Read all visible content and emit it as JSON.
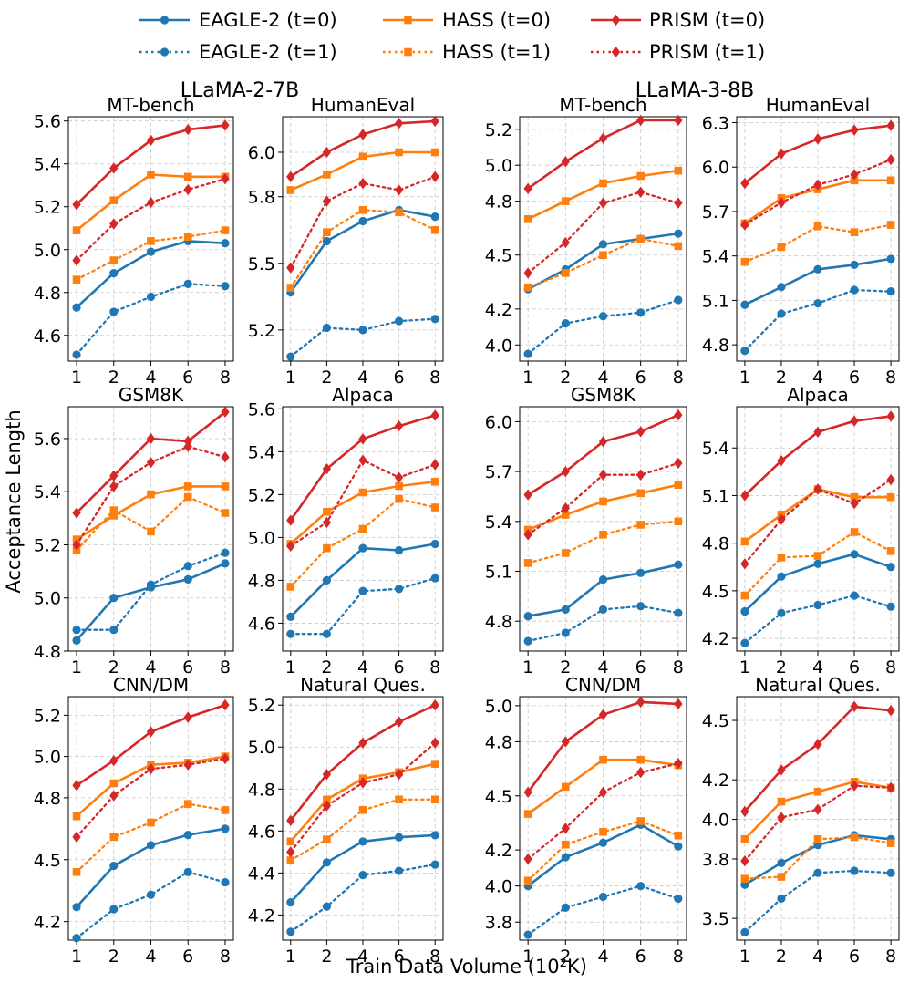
{
  "x_label": "Train Data Volume (10²K)",
  "y_label": "Acceptance Length",
  "groups": [
    "LLaMA-2-7B",
    "LLaMA-3-8B"
  ],
  "legend": [
    {
      "key": "eagle_t0",
      "label": "EAGLE-2 (t=0)",
      "color": "#1f77b4",
      "marker": "circle",
      "dashed": false
    },
    {
      "key": "eagle_t1",
      "label": "EAGLE-2 (t=1)",
      "color": "#1f77b4",
      "marker": "circle",
      "dashed": true
    },
    {
      "key": "hass_t0",
      "label": "HASS (t=0)",
      "color": "#ff7f0e",
      "marker": "square",
      "dashed": false
    },
    {
      "key": "hass_t1",
      "label": "HASS (t=1)",
      "color": "#ff7f0e",
      "marker": "square",
      "dashed": true
    },
    {
      "key": "prism_t0",
      "label": "PRISM (t=0)",
      "color": "#d62728",
      "marker": "diamond",
      "dashed": false
    },
    {
      "key": "prism_t1",
      "label": "PRISM (t=1)",
      "color": "#d62728",
      "marker": "diamond",
      "dashed": true
    }
  ],
  "chart_data": [
    {
      "type": "line",
      "group": "LLaMA-2-7B",
      "title": "MT-bench",
      "x": [
        1,
        2,
        4,
        6,
        8
      ],
      "ylim": [
        4.48,
        5.62
      ],
      "yticks": [
        4.6,
        4.8,
        5.0,
        5.2,
        5.4,
        5.6
      ],
      "ytick_labels": [
        "4.6",
        "4.8",
        "5.0",
        "5.2",
        "5.4",
        "5.6"
      ],
      "series": [
        {
          "name": "EAGLE-2 (t=0)",
          "values": [
            4.73,
            4.89,
            4.99,
            5.04,
            5.03
          ]
        },
        {
          "name": "EAGLE-2 (t=1)",
          "values": [
            4.51,
            4.71,
            4.78,
            4.84,
            4.83
          ]
        },
        {
          "name": "HASS (t=0)",
          "values": [
            5.09,
            5.23,
            5.35,
            5.34,
            5.34
          ]
        },
        {
          "name": "HASS (t=1)",
          "values": [
            4.86,
            4.95,
            5.04,
            5.06,
            5.09
          ]
        },
        {
          "name": "PRISM (t=0)",
          "values": [
            5.21,
            5.38,
            5.51,
            5.56,
            5.58
          ]
        },
        {
          "name": "PRISM (t=1)",
          "values": [
            4.95,
            5.12,
            5.22,
            5.28,
            5.33
          ]
        }
      ]
    },
    {
      "type": "line",
      "group": "LLaMA-2-7B",
      "title": "HumanEval",
      "x": [
        1,
        2,
        4,
        6,
        8
      ],
      "ylim": [
        5.06,
        6.16
      ],
      "yticks": [
        5.2,
        5.5,
        5.8,
        6.0
      ],
      "ytick_labels": [
        "5.2",
        "5.5",
        "5.8",
        "6.0"
      ],
      "series": [
        {
          "name": "EAGLE-2 (t=0)",
          "values": [
            5.37,
            5.6,
            5.69,
            5.74,
            5.71
          ]
        },
        {
          "name": "EAGLE-2 (t=1)",
          "values": [
            5.08,
            5.21,
            5.2,
            5.24,
            5.25
          ]
        },
        {
          "name": "HASS (t=0)",
          "values": [
            5.83,
            5.9,
            5.98,
            6.0,
            6.0
          ]
        },
        {
          "name": "HASS (t=1)",
          "values": [
            5.39,
            5.64,
            5.74,
            5.73,
            5.65
          ]
        },
        {
          "name": "PRISM (t=0)",
          "values": [
            5.89,
            6.0,
            6.08,
            6.13,
            6.14
          ]
        },
        {
          "name": "PRISM (t=1)",
          "values": [
            5.48,
            5.78,
            5.86,
            5.83,
            5.89
          ]
        }
      ]
    },
    {
      "type": "line",
      "group": "LLaMA-3-8B",
      "title": "MT-bench",
      "x": [
        1,
        2,
        4,
        6,
        8
      ],
      "ylim": [
        3.91,
        5.27
      ],
      "yticks": [
        4.0,
        4.2,
        4.5,
        4.8,
        5.0,
        5.2
      ],
      "ytick_labels": [
        "4.0",
        "4.2",
        "4.5",
        "4.8",
        "5.0",
        "5.2"
      ],
      "series": [
        {
          "name": "EAGLE-2 (t=0)",
          "values": [
            4.31,
            4.42,
            4.56,
            4.59,
            4.62
          ]
        },
        {
          "name": "EAGLE-2 (t=1)",
          "values": [
            3.95,
            4.12,
            4.16,
            4.18,
            4.25
          ]
        },
        {
          "name": "HASS (t=0)",
          "values": [
            4.7,
            4.8,
            4.9,
            4.94,
            4.97
          ]
        },
        {
          "name": "HASS (t=1)",
          "values": [
            4.32,
            4.4,
            4.5,
            4.59,
            4.55
          ]
        },
        {
          "name": "PRISM (t=0)",
          "values": [
            4.87,
            5.02,
            5.15,
            5.25,
            5.25
          ]
        },
        {
          "name": "PRISM (t=1)",
          "values": [
            4.4,
            4.57,
            4.79,
            4.85,
            4.79
          ]
        }
      ]
    },
    {
      "type": "line",
      "group": "LLaMA-3-8B",
      "title": "HumanEval",
      "x": [
        1,
        2,
        4,
        6,
        8
      ],
      "ylim": [
        4.69,
        6.34
      ],
      "yticks": [
        4.8,
        5.1,
        5.4,
        5.7,
        6.0,
        6.3
      ],
      "ytick_labels": [
        "4.8",
        "5.1",
        "5.4",
        "5.7",
        "6.0",
        "6.3"
      ],
      "series": [
        {
          "name": "EAGLE-2 (t=0)",
          "values": [
            5.07,
            5.19,
            5.31,
            5.34,
            5.38
          ]
        },
        {
          "name": "EAGLE-2 (t=1)",
          "values": [
            4.76,
            5.01,
            5.08,
            5.17,
            5.16
          ]
        },
        {
          "name": "HASS (t=0)",
          "values": [
            5.62,
            5.79,
            5.85,
            5.91,
            5.91
          ]
        },
        {
          "name": "HASS (t=1)",
          "values": [
            5.36,
            5.46,
            5.6,
            5.56,
            5.61
          ]
        },
        {
          "name": "PRISM (t=0)",
          "values": [
            5.89,
            6.09,
            6.19,
            6.25,
            6.28
          ]
        },
        {
          "name": "PRISM (t=1)",
          "values": [
            5.61,
            5.76,
            5.88,
            5.95,
            6.05
          ]
        }
      ]
    },
    {
      "type": "line",
      "group": "LLaMA-2-7B",
      "title": "GSM8K",
      "x": [
        1,
        2,
        4,
        6,
        8
      ],
      "ylim": [
        4.8,
        5.72
      ],
      "yticks": [
        4.8,
        5.0,
        5.2,
        5.4,
        5.6
      ],
      "ytick_labels": [
        "4.8",
        "5.0",
        "5.2",
        "5.4",
        "5.6"
      ],
      "series": [
        {
          "name": "EAGLE-2 (t=0)",
          "values": [
            4.84,
            5.0,
            5.04,
            5.07,
            5.13
          ]
        },
        {
          "name": "EAGLE-2 (t=1)",
          "values": [
            4.88,
            4.88,
            5.05,
            5.12,
            5.17
          ]
        },
        {
          "name": "HASS (t=0)",
          "values": [
            5.22,
            5.31,
            5.39,
            5.42,
            5.42
          ]
        },
        {
          "name": "HASS (t=1)",
          "values": [
            5.18,
            5.33,
            5.25,
            5.38,
            5.32
          ]
        },
        {
          "name": "PRISM (t=0)",
          "values": [
            5.32,
            5.46,
            5.6,
            5.59,
            5.7
          ]
        },
        {
          "name": "PRISM (t=1)",
          "values": [
            5.2,
            5.42,
            5.51,
            5.57,
            5.53
          ]
        }
      ]
    },
    {
      "type": "line",
      "group": "LLaMA-2-7B",
      "title": "Alpaca",
      "x": [
        1,
        2,
        4,
        6,
        8
      ],
      "ylim": [
        4.47,
        5.61
      ],
      "yticks": [
        4.6,
        4.8,
        5.0,
        5.2,
        5.4,
        5.6
      ],
      "ytick_labels": [
        "4.6",
        "4.8",
        "5.0",
        "5.2",
        "5.4",
        "5.6"
      ],
      "series": [
        {
          "name": "EAGLE-2 (t=0)",
          "values": [
            4.63,
            4.8,
            4.95,
            4.94,
            4.97
          ]
        },
        {
          "name": "EAGLE-2 (t=1)",
          "values": [
            4.55,
            4.55,
            4.75,
            4.76,
            4.81
          ]
        },
        {
          "name": "HASS (t=0)",
          "values": [
            4.97,
            5.12,
            5.21,
            5.24,
            5.26
          ]
        },
        {
          "name": "HASS (t=1)",
          "values": [
            4.77,
            4.95,
            5.04,
            5.18,
            5.14
          ]
        },
        {
          "name": "PRISM (t=0)",
          "values": [
            5.08,
            5.32,
            5.46,
            5.52,
            5.57
          ]
        },
        {
          "name": "PRISM (t=1)",
          "values": [
            4.96,
            5.07,
            5.36,
            5.28,
            5.34
          ]
        }
      ]
    },
    {
      "type": "line",
      "group": "LLaMA-3-8B",
      "title": "GSM8K",
      "x": [
        1,
        2,
        4,
        6,
        8
      ],
      "ylim": [
        4.62,
        6.09
      ],
      "yticks": [
        4.8,
        5.1,
        5.4,
        5.7,
        6.0
      ],
      "ytick_labels": [
        "4.8",
        "5.1",
        "5.4",
        "5.7",
        "6.0"
      ],
      "series": [
        {
          "name": "EAGLE-2 (t=0)",
          "values": [
            4.83,
            4.87,
            5.05,
            5.09,
            5.14
          ]
        },
        {
          "name": "EAGLE-2 (t=1)",
          "values": [
            4.68,
            4.73,
            4.87,
            4.89,
            4.85
          ]
        },
        {
          "name": "HASS (t=0)",
          "values": [
            5.35,
            5.44,
            5.52,
            5.57,
            5.62
          ]
        },
        {
          "name": "HASS (t=1)",
          "values": [
            5.15,
            5.21,
            5.32,
            5.38,
            5.4
          ]
        },
        {
          "name": "PRISM (t=0)",
          "values": [
            5.56,
            5.7,
            5.88,
            5.94,
            6.04
          ]
        },
        {
          "name": "PRISM (t=1)",
          "values": [
            5.32,
            5.48,
            5.68,
            5.68,
            5.75
          ]
        }
      ]
    },
    {
      "type": "line",
      "group": "LLaMA-3-8B",
      "title": "Alpaca",
      "x": [
        1,
        2,
        4,
        6,
        8
      ],
      "ylim": [
        4.12,
        5.66
      ],
      "yticks": [
        4.2,
        4.5,
        4.8,
        5.1,
        5.4
      ],
      "ytick_labels": [
        "4.2",
        "4.5",
        "4.8",
        "5.1",
        "5.4"
      ],
      "series": [
        {
          "name": "EAGLE-2 (t=0)",
          "values": [
            4.37,
            4.59,
            4.67,
            4.73,
            4.65
          ]
        },
        {
          "name": "EAGLE-2 (t=1)",
          "values": [
            4.17,
            4.36,
            4.41,
            4.47,
            4.4
          ]
        },
        {
          "name": "HASS (t=0)",
          "values": [
            4.81,
            4.98,
            5.14,
            5.09,
            5.09
          ]
        },
        {
          "name": "HASS (t=1)",
          "values": [
            4.47,
            4.71,
            4.72,
            4.87,
            4.75
          ]
        },
        {
          "name": "PRISM (t=0)",
          "values": [
            5.1,
            5.32,
            5.5,
            5.57,
            5.6
          ]
        },
        {
          "name": "PRISM (t=1)",
          "values": [
            4.67,
            4.95,
            5.14,
            5.05,
            5.2
          ]
        }
      ]
    },
    {
      "type": "line",
      "group": "LLaMA-2-7B",
      "title": "CNN/DM",
      "x": [
        1,
        2,
        4,
        6,
        8
      ],
      "ylim": [
        4.11,
        5.29
      ],
      "yticks": [
        4.2,
        4.5,
        4.8,
        5.0,
        5.2
      ],
      "ytick_labels": [
        "4.2",
        "4.5",
        "4.8",
        "5.0",
        "5.2"
      ],
      "series": [
        {
          "name": "EAGLE-2 (t=0)",
          "values": [
            4.27,
            4.47,
            4.57,
            4.62,
            4.65
          ]
        },
        {
          "name": "EAGLE-2 (t=1)",
          "values": [
            4.12,
            4.26,
            4.33,
            4.44,
            4.39
          ]
        },
        {
          "name": "HASS (t=0)",
          "values": [
            4.71,
            4.87,
            4.96,
            4.97,
            5.0
          ]
        },
        {
          "name": "HASS (t=1)",
          "values": [
            4.44,
            4.61,
            4.68,
            4.77,
            4.74
          ]
        },
        {
          "name": "PRISM (t=0)",
          "values": [
            4.86,
            4.98,
            5.12,
            5.19,
            5.25
          ]
        },
        {
          "name": "PRISM (t=1)",
          "values": [
            4.61,
            4.81,
            4.94,
            4.96,
            4.99
          ]
        }
      ]
    },
    {
      "type": "line",
      "group": "LLaMA-2-7B",
      "title": "Natural Ques.",
      "x": [
        1,
        2,
        4,
        6,
        8
      ],
      "ylim": [
        4.08,
        5.24
      ],
      "yticks": [
        4.2,
        4.4,
        4.6,
        4.8,
        5.0,
        5.2
      ],
      "ytick_labels": [
        "4.2",
        "4.4",
        "4.6",
        "4.8",
        "5.0",
        "5.2"
      ],
      "series": [
        {
          "name": "EAGLE-2 (t=0)",
          "values": [
            4.26,
            4.45,
            4.55,
            4.57,
            4.58
          ]
        },
        {
          "name": "EAGLE-2 (t=1)",
          "values": [
            4.12,
            4.24,
            4.39,
            4.41,
            4.44
          ]
        },
        {
          "name": "HASS (t=0)",
          "values": [
            4.55,
            4.75,
            4.85,
            4.88,
            4.92
          ]
        },
        {
          "name": "HASS (t=1)",
          "values": [
            4.46,
            4.56,
            4.7,
            4.75,
            4.75
          ]
        },
        {
          "name": "PRISM (t=0)",
          "values": [
            4.65,
            4.87,
            5.02,
            5.12,
            5.2
          ]
        },
        {
          "name": "PRISM (t=1)",
          "values": [
            4.5,
            4.72,
            4.83,
            4.87,
            5.02
          ]
        }
      ]
    },
    {
      "type": "line",
      "group": "LLaMA-3-8B",
      "title": "CNN/DM",
      "x": [
        1,
        2,
        4,
        6,
        8
      ],
      "ylim": [
        3.7,
        5.05
      ],
      "yticks": [
        3.8,
        4.0,
        4.2,
        4.5,
        4.8,
        5.0
      ],
      "ytick_labels": [
        "3.8",
        "4.0",
        "4.2",
        "4.5",
        "4.8",
        "5.0"
      ],
      "series": [
        {
          "name": "EAGLE-2 (t=0)",
          "values": [
            4.0,
            4.16,
            4.24,
            4.34,
            4.22
          ]
        },
        {
          "name": "EAGLE-2 (t=1)",
          "values": [
            3.73,
            3.88,
            3.94,
            4.0,
            3.93
          ]
        },
        {
          "name": "HASS (t=0)",
          "values": [
            4.4,
            4.55,
            4.7,
            4.7,
            4.67
          ]
        },
        {
          "name": "HASS (t=1)",
          "values": [
            4.03,
            4.23,
            4.3,
            4.36,
            4.28
          ]
        },
        {
          "name": "PRISM (t=0)",
          "values": [
            4.52,
            4.8,
            4.95,
            5.02,
            5.01
          ]
        },
        {
          "name": "PRISM (t=1)",
          "values": [
            4.15,
            4.32,
            4.52,
            4.63,
            4.68
          ]
        }
      ]
    },
    {
      "type": "line",
      "group": "LLaMA-3-8B",
      "title": "Natural Ques.",
      "x": [
        1,
        2,
        4,
        6,
        8
      ],
      "ylim": [
        3.39,
        4.62
      ],
      "yticks": [
        3.5,
        3.8,
        4.0,
        4.2,
        4.5
      ],
      "ytick_labels": [
        "3.5",
        "3.8",
        "4.0",
        "4.2",
        "4.5"
      ],
      "series": [
        {
          "name": "EAGLE-2 (t=0)",
          "values": [
            3.67,
            3.78,
            3.87,
            3.92,
            3.9
          ]
        },
        {
          "name": "EAGLE-2 (t=1)",
          "values": [
            3.43,
            3.6,
            3.73,
            3.74,
            3.73
          ]
        },
        {
          "name": "HASS (t=0)",
          "values": [
            3.9,
            4.09,
            4.14,
            4.19,
            4.16
          ]
        },
        {
          "name": "HASS (t=1)",
          "values": [
            3.7,
            3.71,
            3.9,
            3.91,
            3.88
          ]
        },
        {
          "name": "PRISM (t=0)",
          "values": [
            4.04,
            4.25,
            4.38,
            4.57,
            4.55
          ]
        },
        {
          "name": "PRISM (t=1)",
          "values": [
            3.79,
            4.01,
            4.05,
            4.17,
            4.16
          ]
        }
      ]
    }
  ]
}
